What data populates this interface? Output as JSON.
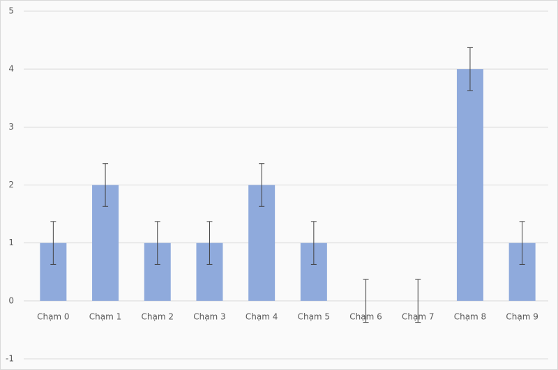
{
  "chart_data": {
    "type": "bar",
    "categories": [
      "Chạm 0",
      "Chạm 1",
      "Chạm 2",
      "Chạm 3",
      "Chạm 4",
      "Chạm 5",
      "Chạm 6",
      "Chạm 7",
      "Chạm 8",
      "Chạm 9"
    ],
    "values": [
      1,
      2,
      1,
      1,
      2,
      1,
      0,
      0,
      4,
      1
    ],
    "errors": [
      0.37,
      0.37,
      0.37,
      0.37,
      0.37,
      0.37,
      0.37,
      0.37,
      0.37,
      0.37
    ],
    "color": "#8faadc",
    "ylim": [
      -1,
      5
    ],
    "yticks": [
      -1,
      0,
      1,
      2,
      3,
      4,
      5
    ],
    "grid": true
  }
}
